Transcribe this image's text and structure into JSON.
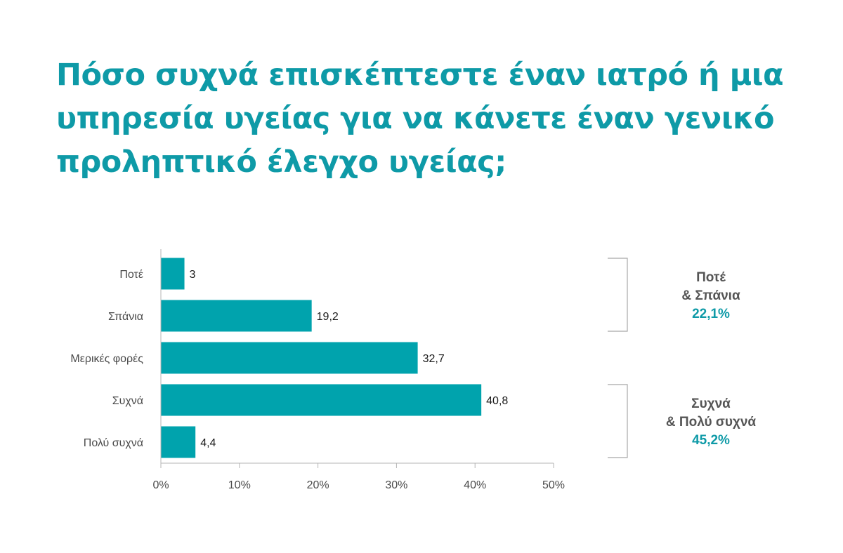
{
  "chart_data": {
    "type": "bar",
    "orientation": "horizontal",
    "title": "Πόσο συχνά επισκέπτεστε έναν ιατρό ή μια υπηρεσία υγείας για να κάνετε έναν γενικό προληπτικό έλεγχο υγείας;",
    "categories": [
      "Ποτέ",
      "Σπάνια",
      "Μερικές φορές",
      "Συχνά",
      "Πολύ συχνά"
    ],
    "values": [
      3,
      19.2,
      32.7,
      40.8,
      4.4
    ],
    "value_labels": [
      "3",
      "19,2",
      "32,7",
      "40,8",
      "4,4"
    ],
    "xlim": [
      0,
      50
    ],
    "x_ticks": [
      0,
      10,
      20,
      30,
      40,
      50
    ],
    "x_tick_labels": [
      "0%",
      "10%",
      "20%",
      "30%",
      "40%",
      "50%"
    ],
    "grid": false,
    "bar_color": "#00a3ad",
    "groups": [
      {
        "name_line1": "Ποτέ",
        "name_line2": "& Σπάνια",
        "value": "22,1%",
        "from": 0,
        "to": 1
      },
      {
        "name_line1": "Συχνά",
        "name_line2": "& Πολύ συχνά",
        "value": "45,2%",
        "from": 3,
        "to": 4
      }
    ]
  }
}
